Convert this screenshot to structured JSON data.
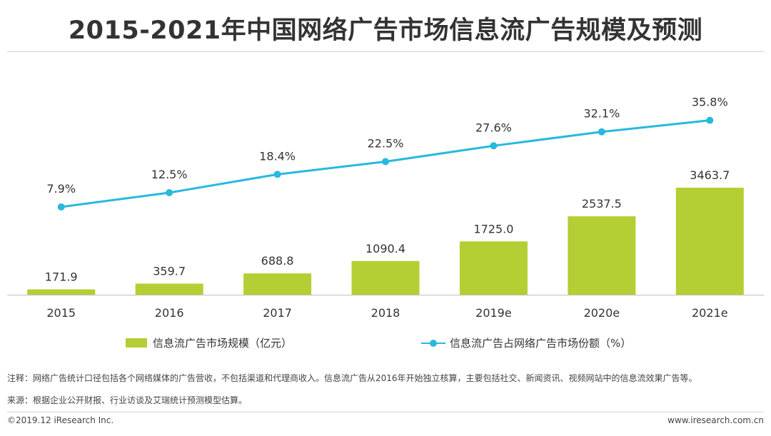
{
  "page": {
    "title": "2015-2021年中国网络广告市场信息流广告规模及预测",
    "legend": {
      "bar_label": "信息流广告市场规模（亿元）",
      "line_label": "信息流广告占网络广告市场份额（%）"
    },
    "notes": {
      "note1": "注释：网络广告统计口径包括各个网络媒体的广告营收，不包括渠道和代理商收入。信息流广告从2016年开始独立核算，主要包括社交、新闻资讯、视频网站中的信息流效果广告等。",
      "source": "来源：根据企业公开财报、行业访谈及艾瑞统计预测模型估算。"
    },
    "footer": {
      "copyright": "©2019.12 iResearch Inc.",
      "website": "www.iresearch.com.cn"
    }
  },
  "chart_data": {
    "type": "bar",
    "title": "2015-2021年中国网络广告市场信息流广告规模及预测",
    "categories": [
      "2015",
      "2016",
      "2017",
      "2018",
      "2019e",
      "2020e",
      "2021e"
    ],
    "series": [
      {
        "name": "信息流广告市场规模（亿元）",
        "type": "bar",
        "values": [
          171.9,
          359.7,
          688.8,
          1090.4,
          1725.0,
          2537.5,
          3463.7
        ],
        "labels": [
          "171.9",
          "359.7",
          "688.8",
          "1090.4",
          "1725.0",
          "2537.5",
          "3463.7"
        ],
        "color": "#b3cf33"
      },
      {
        "name": "信息流广告占网络广告市场份额（%）",
        "type": "line",
        "values": [
          7.9,
          12.5,
          18.4,
          22.5,
          27.6,
          32.1,
          35.8
        ],
        "labels": [
          "7.9%",
          "12.5%",
          "18.4%",
          "22.5%",
          "27.6%",
          "32.1%",
          "35.8%"
        ],
        "color": "#28b8e0"
      }
    ],
    "bar_axis_range": [
      0,
      3600
    ],
    "line_axis_range": [
      0,
      40
    ],
    "grid": false,
    "legend_position": "bottom"
  }
}
